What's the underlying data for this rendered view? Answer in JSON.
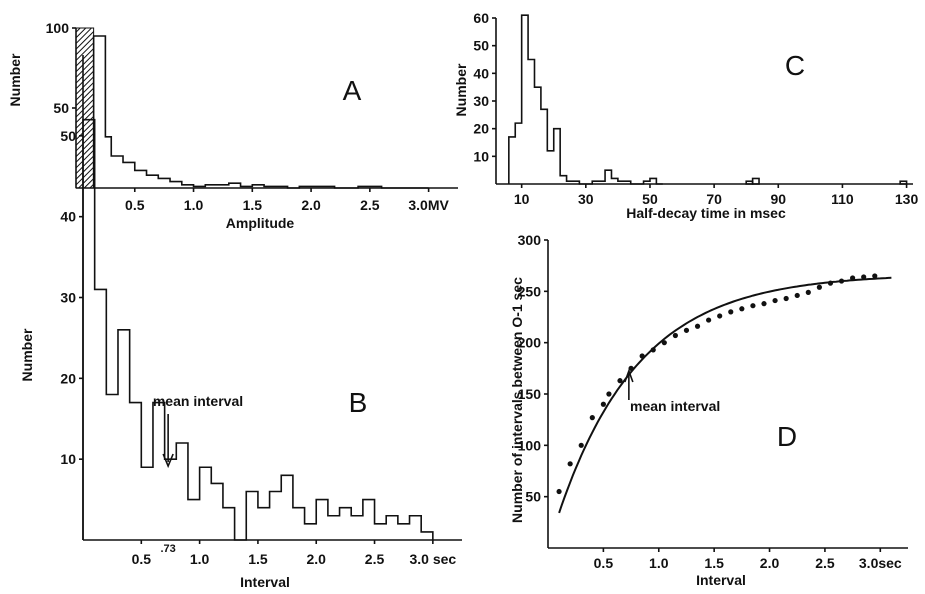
{
  "chart_data": [
    {
      "id": "A",
      "type": "histogram",
      "panel_label": "A",
      "xlabel": "Amplitude",
      "ylabel": "Number",
      "xlim": [
        0.0,
        3.25
      ],
      "ylim": [
        0,
        100
      ],
      "xticks": [
        {
          "v": 0.5,
          "t": "0.5"
        },
        {
          "v": 1.0,
          "t": "1.0"
        },
        {
          "v": 1.5,
          "t": "1.5"
        },
        {
          "v": 2.0,
          "t": "2.0"
        },
        {
          "v": 2.5,
          "t": "2.5"
        },
        {
          "v": 3.0,
          "t": "3.0MV"
        }
      ],
      "yticks": [
        {
          "v": 50,
          "t": "50"
        },
        {
          "v": 100,
          "t": "100"
        }
      ],
      "shaded_region": [
        0.0,
        0.15
      ],
      "bin_edges": [
        0.15,
        0.25,
        0.3,
        0.4,
        0.5,
        0.6,
        0.7,
        0.8,
        0.9,
        1.0,
        1.1,
        1.2,
        1.3,
        1.4,
        1.5,
        1.6,
        1.7,
        1.8,
        1.9,
        2.0,
        2.1,
        2.2,
        2.3,
        2.4,
        2.5,
        2.6,
        2.7,
        2.8,
        2.9,
        3.0
      ],
      "counts": [
        95,
        32,
        20,
        16,
        11,
        8,
        6,
        4,
        2,
        1,
        2,
        2,
        3,
        1,
        2,
        1,
        1,
        0,
        1,
        1,
        1,
        0,
        0,
        1,
        1,
        0,
        0,
        0,
        0
      ]
    },
    {
      "id": "B",
      "type": "histogram",
      "panel_label": "B",
      "xlabel": "Interval",
      "ylabel": "Number",
      "xlim": [
        0.0,
        3.25
      ],
      "ylim": [
        0,
        60
      ],
      "xticks": [
        {
          "v": 0.5,
          "t": "0.5"
        },
        {
          "v": 1.0,
          "t": "1.0"
        },
        {
          "v": 1.5,
          "t": "1.5"
        },
        {
          "v": 2.0,
          "t": "2.0"
        },
        {
          "v": 2.5,
          "t": "2.5"
        },
        {
          "v": 3.0,
          "t": "3.0 sec"
        }
      ],
      "yticks": [
        {
          "v": 10,
          "t": "10"
        },
        {
          "v": 20,
          "t": "20"
        },
        {
          "v": 30,
          "t": "30"
        },
        {
          "v": 40,
          "t": "40"
        },
        {
          "v": 50,
          "t": "50"
        }
      ],
      "bin_edges": [
        0.0,
        0.1,
        0.2,
        0.3,
        0.4,
        0.5,
        0.6,
        0.7,
        0.8,
        0.9,
        1.0,
        1.1,
        1.2,
        1.3,
        1.4,
        1.5,
        1.6,
        1.7,
        1.8,
        1.9,
        2.0,
        2.1,
        2.2,
        2.3,
        2.4,
        2.5,
        2.6,
        2.7,
        2.8,
        2.9,
        3.0
      ],
      "counts": [
        52,
        31,
        18,
        26,
        17,
        9,
        17,
        10,
        12,
        5,
        9,
        7,
        4,
        0,
        6,
        4,
        6,
        8,
        4,
        2,
        5,
        3,
        4,
        3,
        5,
        2,
        3,
        2,
        3,
        1
      ],
      "annotation": {
        "text": "mean interval",
        "x": 0.73,
        "mark": ".73"
      }
    },
    {
      "id": "C",
      "type": "histogram",
      "panel_label": "C",
      "xlabel": "Half-decay time in msec",
      "ylabel": "Number",
      "xlim": [
        2,
        132
      ],
      "ylim": [
        0,
        60
      ],
      "xticks": [
        {
          "v": 10,
          "t": "10"
        },
        {
          "v": 30,
          "t": "30"
        },
        {
          "v": 50,
          "t": "50"
        },
        {
          "v": 70,
          "t": "70"
        },
        {
          "v": 90,
          "t": "90"
        },
        {
          "v": 110,
          "t": "110"
        },
        {
          "v": 130,
          "t": "130"
        }
      ],
      "yticks": [
        {
          "v": 10,
          "t": "10"
        },
        {
          "v": 20,
          "t": "20"
        },
        {
          "v": 30,
          "t": "30"
        },
        {
          "v": 40,
          "t": "40"
        },
        {
          "v": 50,
          "t": "50"
        },
        {
          "v": 60,
          "t": "60"
        }
      ],
      "bin_edges": [
        6,
        8,
        10,
        12,
        14,
        16,
        18,
        20,
        22,
        24,
        26,
        28,
        30,
        32,
        34,
        36,
        38,
        40,
        42,
        44,
        46,
        48,
        50,
        52,
        54
      ],
      "counts": [
        17,
        22,
        61,
        45,
        35,
        27,
        12,
        20,
        3,
        1,
        1,
        0,
        0,
        1,
        1,
        5,
        2,
        1,
        1,
        0,
        0,
        1,
        2,
        0
      ],
      "extra_bars": [
        {
          "x0": 80,
          "x1": 82,
          "count": 1
        },
        {
          "x0": 82,
          "x1": 84,
          "count": 2
        },
        {
          "x0": 128,
          "x1": 130,
          "count": 1
        }
      ]
    },
    {
      "id": "D",
      "type": "scatter",
      "panel_label": "D",
      "xlabel": "Interval",
      "ylabel": "Number of intervals between O-1 sec",
      "xlim": [
        0.0,
        3.25
      ],
      "ylim": [
        0,
        300
      ],
      "xticks": [
        {
          "v": 0.5,
          "t": "0.5"
        },
        {
          "v": 1.0,
          "t": "1.0"
        },
        {
          "v": 1.5,
          "t": "1.5"
        },
        {
          "v": 2.0,
          "t": "2.0"
        },
        {
          "v": 2.5,
          "t": "2.5"
        },
        {
          "v": 3.0,
          "t": "3.0sec"
        }
      ],
      "yticks": [
        {
          "v": 50,
          "t": "50"
        },
        {
          "v": 100,
          "t": "100"
        },
        {
          "v": 150,
          "t": "150"
        },
        {
          "v": 200,
          "t": "200"
        },
        {
          "v": 250,
          "t": "250"
        },
        {
          "v": 300,
          "t": "300"
        }
      ],
      "points": [
        [
          0.1,
          55
        ],
        [
          0.2,
          82
        ],
        [
          0.3,
          100
        ],
        [
          0.4,
          127
        ],
        [
          0.5,
          140
        ],
        [
          0.55,
          150
        ],
        [
          0.65,
          163
        ],
        [
          0.75,
          175
        ],
        [
          0.85,
          187
        ],
        [
          0.95,
          193
        ],
        [
          1.05,
          200
        ],
        [
          1.15,
          207
        ],
        [
          1.25,
          212
        ],
        [
          1.35,
          216
        ],
        [
          1.45,
          222
        ],
        [
          1.55,
          226
        ],
        [
          1.65,
          230
        ],
        [
          1.75,
          233
        ],
        [
          1.85,
          236
        ],
        [
          1.95,
          238
        ],
        [
          2.05,
          241
        ],
        [
          2.15,
          243
        ],
        [
          2.25,
          246
        ],
        [
          2.35,
          249
        ],
        [
          2.45,
          254
        ],
        [
          2.55,
          258
        ],
        [
          2.65,
          260
        ],
        [
          2.75,
          263
        ],
        [
          2.85,
          264
        ],
        [
          2.95,
          265
        ]
      ],
      "curve": {
        "type": "exponential",
        "A": 267,
        "tau": 0.73,
        "x_range": [
          0.1,
          3.1
        ]
      },
      "annotation": {
        "text": "mean interval",
        "x": 0.73
      }
    }
  ]
}
